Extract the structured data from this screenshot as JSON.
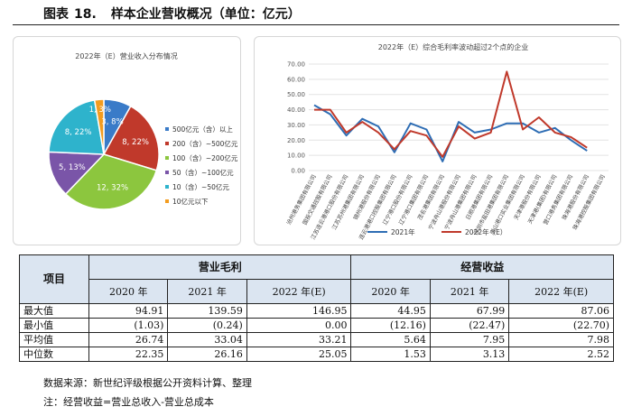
{
  "figure": {
    "prefix": "图表",
    "number": "18.",
    "title": "样本企业营收概况（单位：亿元）"
  },
  "pie_chart": {
    "title": "2022年（E）营业收入分布情况",
    "legend": [
      {
        "label": "500亿元（含）以上",
        "color": "#3a7bc8"
      },
      {
        "label": "200（含）~500亿元",
        "color": "#c0392b"
      },
      {
        "label": "100（含）~200亿元",
        "color": "#8cc63e"
      },
      {
        "label": "50（含）~100亿元",
        "color": "#7a55a8"
      },
      {
        "label": "10（含）~50亿元",
        "color": "#2eb3cc"
      },
      {
        "label": "10亿元以下",
        "color": "#f39c1f"
      }
    ]
  },
  "line_chart": {
    "title": "2022年（E）综合毛利率波动超过2个点的企业",
    "companies": [
      "沧州港务集团有限公司",
      "国投交通控股有限公司",
      "江苏连云港港口股份有限公司",
      "江苏苏州港集团有限公司",
      "锦州港股份有限公司",
      "连云港港口控股集团有限公司",
      "辽宁港口股份有限公司",
      "辽宁港口集团有限公司",
      "茂名港集团有限公司",
      "宁波舟山港股份有限公司",
      "宁波舟山港集团有限公司",
      "日照港集团有限公司",
      "深圳市盐田港集团有限公司",
      "唐山港口实业集团有限公司",
      "天津港股份有限公司",
      "天津港(集团)有限公司",
      "营口港务集团有限公司",
      "珠海港股份有限公司",
      "珠海港控股集团有限公司"
    ],
    "legend": [
      {
        "label": "2021年",
        "color": "#2e6db4"
      },
      {
        "label": "2022年（E）",
        "color": "#c0392b"
      }
    ]
  },
  "chart_data": [
    {
      "type": "pie",
      "title": "2022年（E）营业收入分布情况",
      "categories": [
        "500亿元（含）以上",
        "200（含）~500亿元",
        "100（含）~200亿元",
        "50（含）~100亿元",
        "10（含）~50亿元",
        "10亿元以下"
      ],
      "values": [
        3,
        8,
        12,
        5,
        8,
        1
      ],
      "data_labels": [
        "3, 8%",
        "8, 22%",
        "12, 32%",
        "5, 13%",
        "8, 22%",
        "1, 3%"
      ],
      "colors": [
        "#3a7bc8",
        "#c0392b",
        "#8cc63e",
        "#7a55a8",
        "#2eb3cc",
        "#f39c1f"
      ],
      "legend_position": "right"
    },
    {
      "type": "line",
      "title": "2022年（E）综合毛利率波动超过2个点的企业",
      "categories": [
        "沧州港务集团有限公司",
        "国投交通控股有限公司",
        "江苏连云港港口股份有限公司",
        "江苏苏州港集团有限公司",
        "锦州港股份有限公司",
        "连云港港口控股集团有限公司",
        "辽宁港口股份有限公司",
        "辽宁港口集团有限公司",
        "茂名港集团有限公司",
        "宁波舟山港股份有限公司",
        "宁波舟山港集团有限公司",
        "日照港集团有限公司",
        "深圳市盐田港集团有限公司",
        "唐山港口实业集团有限公司",
        "天津港股份有限公司",
        "天津港(集团)有限公司",
        "营口港务集团有限公司",
        "珠海港股份有限公司",
        "珠海港控股集团有限公司"
      ],
      "series": [
        {
          "name": "2021年",
          "color": "#2e6db4",
          "values": [
            43,
            37,
            23,
            34,
            29,
            12,
            31,
            27,
            6,
            32,
            25,
            27,
            31,
            31,
            25,
            28,
            20,
            13,
            null
          ]
        },
        {
          "name": "2022年（E）",
          "color": "#c0392b",
          "values": [
            40,
            40,
            25,
            32,
            25,
            14,
            26,
            23,
            9,
            29,
            21,
            25,
            65,
            27,
            35,
            25,
            22,
            15,
            null
          ]
        }
      ],
      "ylim": [
        0,
        70
      ],
      "yticks": [
        "0.00",
        "10.00",
        "20.00",
        "30.00",
        "40.00",
        "50.00",
        "60.00",
        "70.00"
      ],
      "grid": true,
      "legend_position": "bottom"
    }
  ],
  "table": {
    "header_item": "项目",
    "groups": [
      "营业毛利",
      "经营收益"
    ],
    "years": [
      "2020 年",
      "2021 年",
      "2022 年(E)",
      "2020 年",
      "2021 年",
      "2022 年(E)"
    ],
    "rows": [
      {
        "label": "最大值",
        "values": [
          "94.91",
          "139.59",
          "146.95",
          "44.95",
          "67.99",
          "87.06"
        ]
      },
      {
        "label": "最小值",
        "values": [
          "(1.03)",
          "(0.24)",
          "0.00",
          "(12.16)",
          "(22.47)",
          "(22.70)"
        ]
      },
      {
        "label": "平均值",
        "values": [
          "26.74",
          "33.04",
          "33.21",
          "5.64",
          "7.95",
          "7.98"
        ]
      },
      {
        "label": "中位数",
        "values": [
          "22.35",
          "26.16",
          "25.05",
          "1.53",
          "3.13",
          "2.52"
        ]
      }
    ]
  },
  "notes": {
    "source": "数据来源：新世纪评级根据公开资料计算、整理",
    "note": "注：经营收益=营业总收入-营业总成本"
  }
}
